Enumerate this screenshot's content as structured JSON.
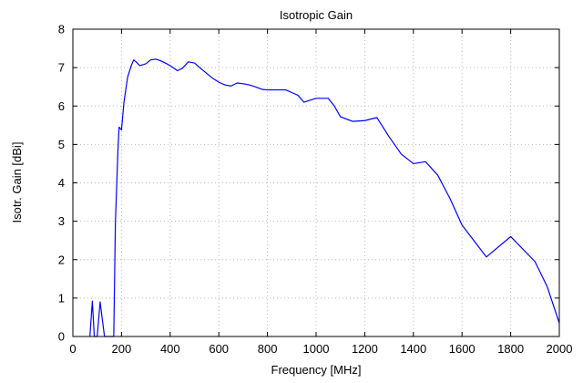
{
  "chart_data": {
    "type": "line",
    "title": "Isotropic Gain",
    "xlabel": "Frequency [MHz]",
    "ylabel": "Isotr. Gain [dBi]",
    "xlim": [
      0,
      2000
    ],
    "ylim": [
      0,
      8
    ],
    "xticks": [
      0,
      200,
      400,
      600,
      800,
      1000,
      1200,
      1400,
      1600,
      1800,
      2000
    ],
    "yticks": [
      0,
      1,
      2,
      3,
      4,
      5,
      6,
      7,
      8
    ],
    "grid": true,
    "line_color": "#0000ff",
    "series": [
      {
        "x": [
          70,
          80,
          88,
          100,
          112,
          122,
          130,
          168,
          175,
          185,
          190,
          200,
          210,
          225,
          240,
          250,
          260,
          275,
          300,
          320,
          340,
          360,
          380,
          400,
          430,
          450,
          475,
          500,
          525,
          550,
          575,
          600,
          625,
          650,
          675,
          700,
          725,
          750,
          780,
          800,
          840,
          875,
          900,
          925,
          950,
          975,
          1000,
          1025,
          1050,
          1075,
          1100,
          1150,
          1200,
          1250,
          1300,
          1350,
          1400,
          1450,
          1500,
          1550,
          1600,
          1700,
          1800,
          1900,
          1950,
          2000
        ],
        "y": [
          0.0,
          0.92,
          0.0,
          0.0,
          0.9,
          0.4,
          0.0,
          0.0,
          3.0,
          4.8,
          5.45,
          5.38,
          6.1,
          6.75,
          7.05,
          7.2,
          7.15,
          7.05,
          7.1,
          7.2,
          7.22,
          7.18,
          7.12,
          7.05,
          6.92,
          6.98,
          7.15,
          7.12,
          6.98,
          6.85,
          6.72,
          6.62,
          6.55,
          6.52,
          6.6,
          6.58,
          6.55,
          6.5,
          6.43,
          6.42,
          6.42,
          6.42,
          6.35,
          6.28,
          6.1,
          6.15,
          6.2,
          6.2,
          6.2,
          6.0,
          5.72,
          5.6,
          5.62,
          5.7,
          5.2,
          4.75,
          4.5,
          4.55,
          4.2,
          3.6,
          2.9,
          2.07,
          2.6,
          1.95,
          1.3,
          0.35
        ]
      }
    ]
  }
}
